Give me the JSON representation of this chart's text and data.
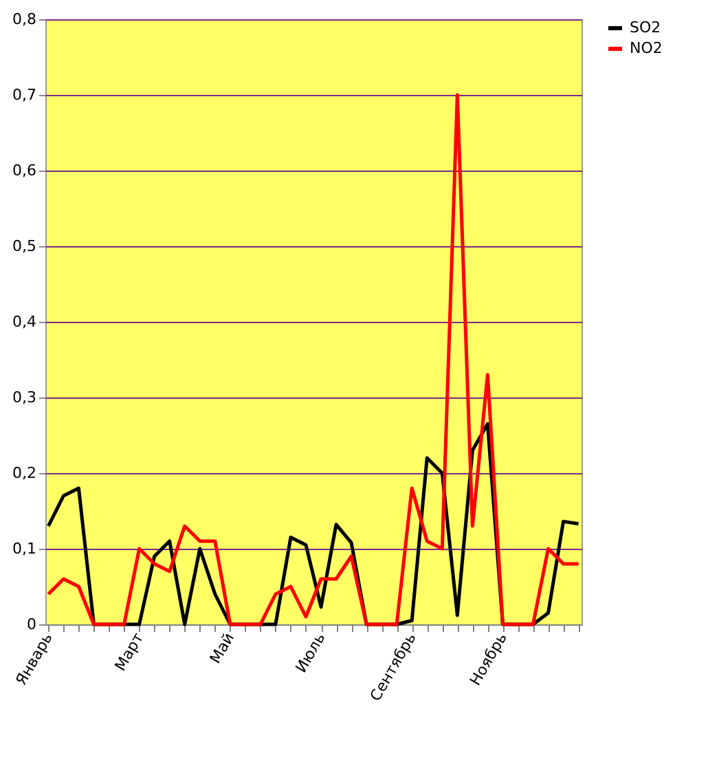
{
  "chart_data": {
    "type": "line",
    "categories": [
      "Январь",
      null,
      null,
      null,
      null,
      null,
      "Март",
      null,
      null,
      null,
      null,
      null,
      "Май",
      null,
      null,
      null,
      null,
      null,
      "Июль",
      null,
      null,
      null,
      null,
      null,
      "Сентябрь",
      null,
      null,
      null,
      null,
      null,
      "Ноябрь",
      null,
      null,
      null,
      null,
      null
    ],
    "series": [
      {
        "name": "SO2",
        "color": "#000000",
        "values": [
          0.13,
          0.17,
          0.18,
          0,
          0,
          0,
          0,
          0.09,
          0.11,
          0,
          0.1,
          0.04,
          0,
          0,
          0,
          0,
          0.115,
          0.105,
          0.023,
          0.132,
          0.108,
          0,
          0,
          0,
          0.005,
          0.22,
          0.2,
          0.012,
          0.23,
          0.265,
          0,
          0,
          0,
          0.015,
          0.136,
          0.133
        ]
      },
      {
        "name": "NO2",
        "color": "#ff0000",
        "values": [
          0.04,
          0.06,
          0.05,
          0,
          0,
          0,
          0.1,
          0.08,
          0.07,
          0.13,
          0.11,
          0.11,
          0,
          0,
          0,
          0.04,
          0.05,
          0.01,
          0.06,
          0.06,
          0.09,
          0,
          0,
          0,
          0.18,
          0.11,
          0.1,
          0.7,
          0.13,
          0.33,
          0,
          0,
          0,
          0.1,
          0.08,
          0.08
        ]
      }
    ],
    "ylim": [
      0,
      0.8
    ],
    "yticks": [
      0,
      {
        "value": 0.1,
        "label": "0,1"
      },
      {
        "value": 0.2,
        "label": "0,2"
      },
      {
        "value": 0.3,
        "label": "0,3"
      },
      {
        "value": 0.4,
        "label": "0,4"
      },
      {
        "value": 0.5,
        "label": "0,5"
      },
      {
        "value": 0.6,
        "label": "0,6"
      },
      {
        "value": 0.7,
        "label": "0,7"
      },
      {
        "value": 0.8,
        "label": "0,8"
      }
    ],
    "grid": "y",
    "legend": "right",
    "marker": "none",
    "line_style": "solid"
  }
}
